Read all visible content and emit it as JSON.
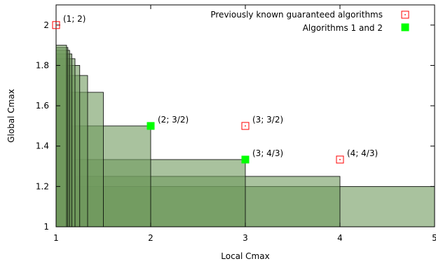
{
  "chart_data": {
    "type": "scatter",
    "title": "",
    "xlabel": "Local Cmax",
    "ylabel": "Global Cmax",
    "xlim": [
      1,
      5
    ],
    "ylim": [
      1,
      2.1
    ],
    "x_ticks": [
      1,
      2,
      3,
      4,
      5
    ],
    "y_ticks": [
      1,
      1.2,
      1.4,
      1.6,
      1.8,
      2
    ],
    "x_tick_labels": [
      "1",
      "2",
      "3",
      "4",
      "5"
    ],
    "y_tick_labels": [
      "1",
      "1.2",
      "1.4",
      "1.6",
      "1.8",
      "2"
    ],
    "grid": false,
    "legend_position": "top-right",
    "colors": {
      "region_fill": "#6f9a5e",
      "region_stroke": "#000000",
      "previous_marker": "#ff0000",
      "algorithms_marker": "#00ff00"
    },
    "regions": [
      {
        "x": 5,
        "y": 1.2
      },
      {
        "x": 4,
        "y": 1.25
      },
      {
        "x": 3,
        "y": 1.3333
      },
      {
        "x": 2,
        "y": 1.5
      },
      {
        "x": 1.5,
        "y": 1.6667
      },
      {
        "x": 1.3333,
        "y": 1.75
      },
      {
        "x": 1.25,
        "y": 1.8
      },
      {
        "x": 1.2,
        "y": 1.8333
      },
      {
        "x": 1.1667,
        "y": 1.8571
      },
      {
        "x": 1.1429,
        "y": 1.875
      },
      {
        "x": 1.125,
        "y": 1.8889
      },
      {
        "x": 1.1111,
        "y": 1.9
      }
    ],
    "series": [
      {
        "name": "Previously known guaranteed algorithms",
        "marker": "open-square-dot",
        "points": [
          {
            "x": 1,
            "y": 2,
            "label": "(1; 2)"
          },
          {
            "x": 3,
            "y": 1.5,
            "label": "(3; 3/2)"
          },
          {
            "x": 4,
            "y": 1.3333,
            "label": "(4; 4/3)"
          }
        ]
      },
      {
        "name": "Algorithms 1 and 2",
        "marker": "filled-square",
        "points": [
          {
            "x": 2,
            "y": 1.5,
            "label": "(2; 3/2)"
          },
          {
            "x": 3,
            "y": 1.3333,
            "label": "(3; 4/3)"
          }
        ]
      }
    ]
  }
}
